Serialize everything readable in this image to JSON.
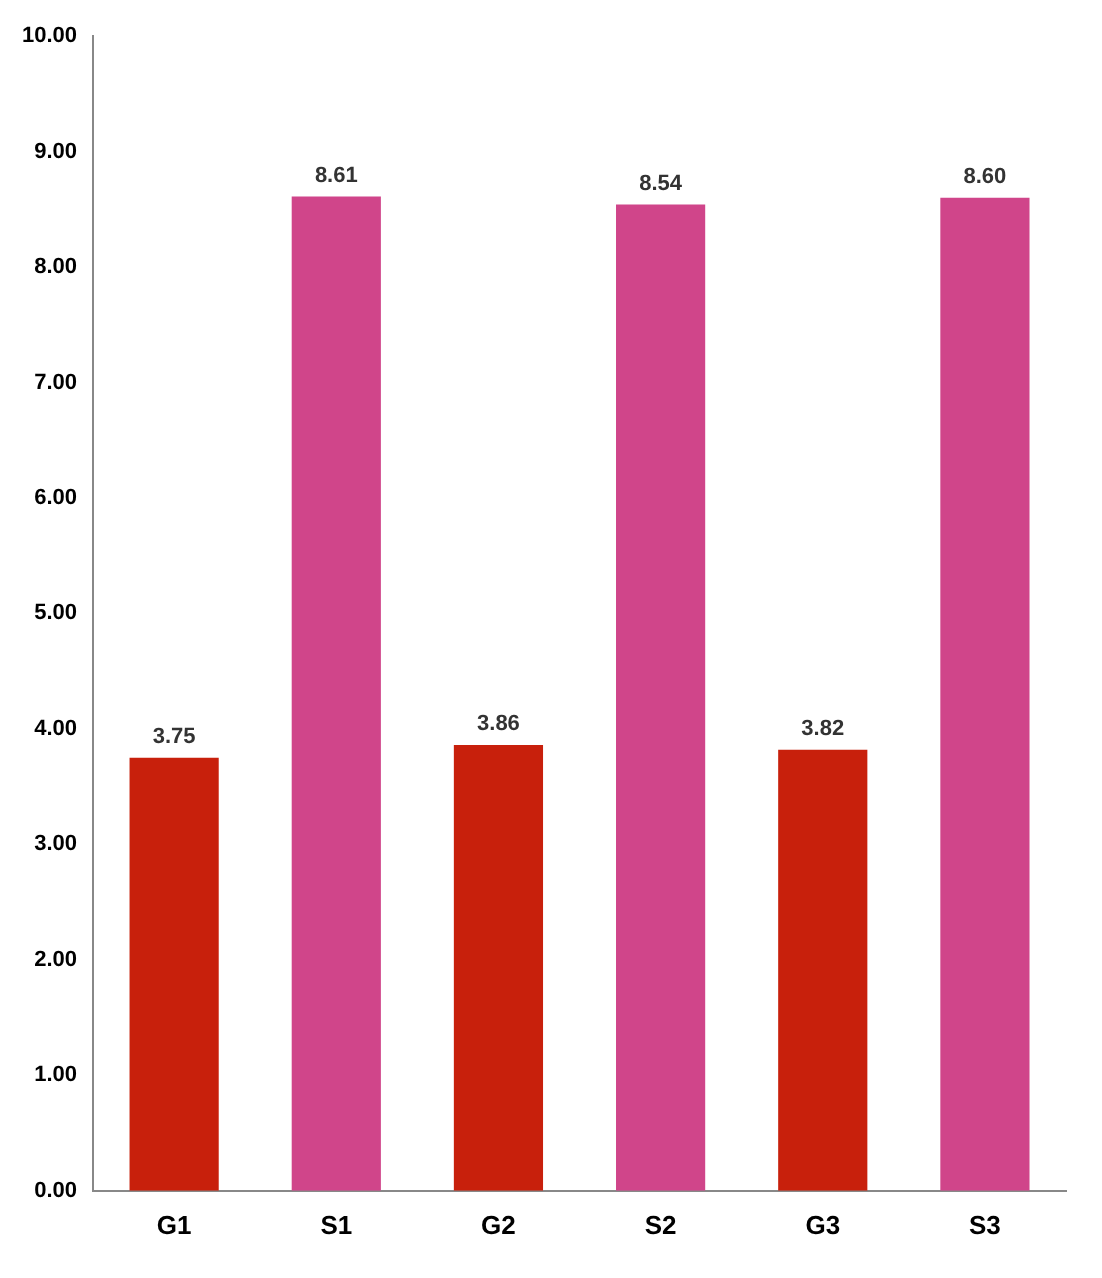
{
  "chart_data": {
    "type": "bar",
    "categories": [
      "G1",
      "S1",
      "G2",
      "S2",
      "G3",
      "S3"
    ],
    "values": [
      3.75,
      8.61,
      3.86,
      8.54,
      3.82,
      8.6
    ],
    "colors": [
      "#c8200c",
      "#d0458a",
      "#c8200c",
      "#d0458a",
      "#c8200c",
      "#d0458a"
    ],
    "value_labels": [
      "3.75",
      "8.61",
      "3.86",
      "8.54",
      "3.82",
      "8.60"
    ],
    "ylim": [
      0,
      10
    ],
    "yticks": [
      {
        "value": 0,
        "label": "0.00"
      },
      {
        "value": 1,
        "label": "1.00"
      },
      {
        "value": 2,
        "label": "2.00"
      },
      {
        "value": 3,
        "label": "3.00"
      },
      {
        "value": 4,
        "label": "4.00"
      },
      {
        "value": 5,
        "label": "5.00"
      },
      {
        "value": 6,
        "label": "6.00"
      },
      {
        "value": 7,
        "label": "7.00"
      },
      {
        "value": 8,
        "label": "8.00"
      },
      {
        "value": 9,
        "label": "9.00"
      },
      {
        "value": 10,
        "label": "10.00"
      }
    ],
    "grid": false,
    "legend": false
  }
}
